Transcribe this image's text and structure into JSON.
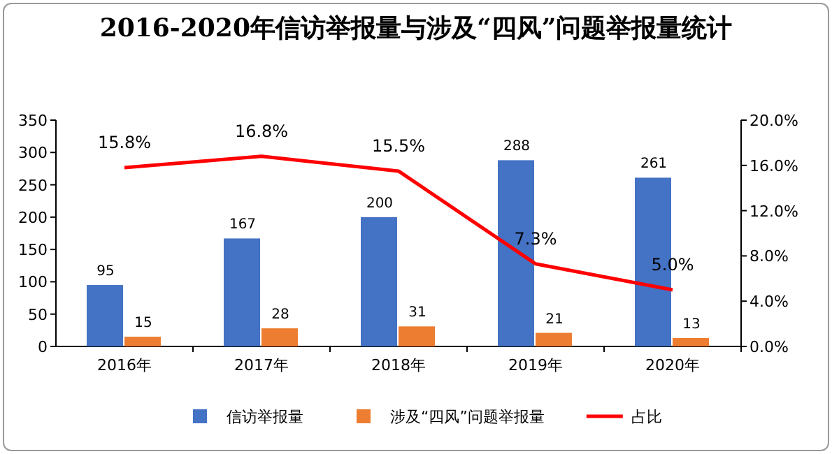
{
  "chart_data": {
    "type": "bar",
    "title": "2016-2020年信访举报量与涉及“四风”问题举报量统计",
    "categories": [
      "2016年",
      "2017年",
      "2018年",
      "2019年",
      "2020年"
    ],
    "series": [
      {
        "name": "信访举报量",
        "color": "#4472c4",
        "values": [
          95,
          167,
          200,
          288,
          261
        ],
        "value_labels": [
          "95",
          "167",
          "200",
          "288",
          "261"
        ]
      },
      {
        "name": "涉及“四风”问题举报量",
        "color": "#ed7d31",
        "values": [
          15,
          28,
          31,
          21,
          13
        ],
        "value_labels": [
          "15",
          "28",
          "31",
          "21",
          "13"
        ]
      },
      {
        "name": "占比",
        "type": "line",
        "axis": "y2",
        "color": "#ff0000",
        "values": [
          15.8,
          16.8,
          15.5,
          7.3,
          5.0
        ],
        "value_labels": [
          "15.8%",
          "16.8%",
          "15.5%",
          "7.3%",
          "5.0%"
        ]
      }
    ],
    "ylim": [
      0,
      350
    ],
    "yticks": [
      0,
      50,
      100,
      150,
      200,
      250,
      300,
      350
    ],
    "y2lim": [
      0,
      20
    ],
    "y2ticks": [
      {
        "value": 0,
        "label": "0.0%"
      },
      {
        "value": 4,
        "label": "4.0%"
      },
      {
        "value": 8,
        "label": "8.0%"
      },
      {
        "value": 12,
        "label": "12.0%"
      },
      {
        "value": 16,
        "label": "16.0%"
      },
      {
        "value": 20,
        "label": "20.0%"
      }
    ],
    "legend": "bottom",
    "grid": false,
    "marker": "none",
    "line_style": "solid"
  }
}
